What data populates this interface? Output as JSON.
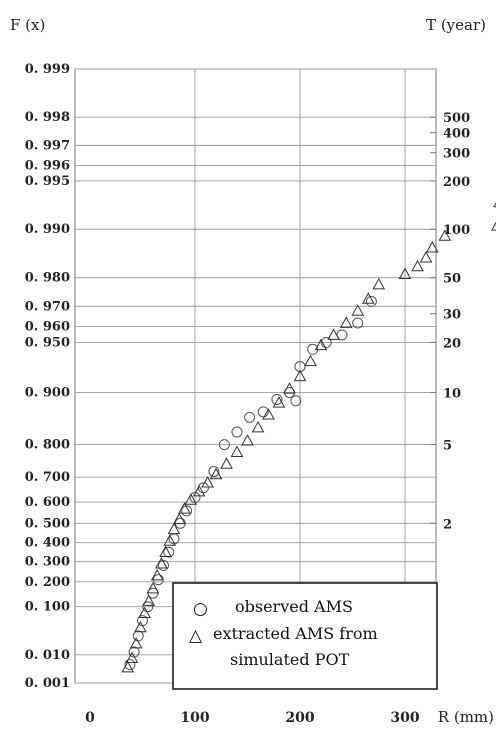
{
  "chart_data": {
    "type": "scatter",
    "title": "",
    "left_axis_title": "F (x)",
    "right_axis_title": "T (year)",
    "xlabel": "R (mm)",
    "xlim": [
      0,
      400
    ],
    "x_ticks": [
      {
        "value": 0,
        "label": "0"
      },
      {
        "value": 100,
        "label": "100"
      },
      {
        "value": 200,
        "label": "200"
      },
      {
        "value": 300,
        "label": "300"
      }
    ],
    "y_scale": "gumbel probability (reduced variate -ln(-ln F))",
    "ylim": [
      0.001,
      0.999
    ],
    "left_ticks": [
      {
        "value": 0.999,
        "label": "0. 999"
      },
      {
        "value": 0.998,
        "label": "0. 998"
      },
      {
        "value": 0.997,
        "label": "0. 997"
      },
      {
        "value": 0.996,
        "label": "0. 996"
      },
      {
        "value": 0.995,
        "label": "0. 995"
      },
      {
        "value": 0.99,
        "label": "0. 990"
      },
      {
        "value": 0.98,
        "label": "0. 980"
      },
      {
        "value": 0.97,
        "label": "0. 970"
      },
      {
        "value": 0.96,
        "label": "0. 960"
      },
      {
        "value": 0.95,
        "label": "0. 950"
      },
      {
        "value": 0.9,
        "label": "0. 900"
      },
      {
        "value": 0.8,
        "label": "0. 800"
      },
      {
        "value": 0.7,
        "label": "0. 700"
      },
      {
        "value": 0.6,
        "label": "0. 600"
      },
      {
        "value": 0.5,
        "label": "0. 500"
      },
      {
        "value": 0.4,
        "label": "0. 400"
      },
      {
        "value": 0.3,
        "label": "0. 300"
      },
      {
        "value": 0.2,
        "label": "0. 200"
      },
      {
        "value": 0.1,
        "label": "0. 100"
      },
      {
        "value": 0.01,
        "label": "0. 010"
      },
      {
        "value": 0.001,
        "label": "0. 001"
      }
    ],
    "right_ticks": [
      {
        "value": 500,
        "label": "500"
      },
      {
        "value": 400,
        "label": "400"
      },
      {
        "value": 300,
        "label": "300"
      },
      {
        "value": 200,
        "label": "200"
      },
      {
        "value": 100,
        "label": "100"
      },
      {
        "value": 50,
        "label": "50"
      },
      {
        "value": 30,
        "label": "30"
      },
      {
        "value": 20,
        "label": "20"
      },
      {
        "value": 10,
        "label": "10"
      },
      {
        "value": 5,
        "label": "5"
      },
      {
        "value": 2,
        "label": "2"
      }
    ],
    "grid": true,
    "legend_position": "bottom-right",
    "series": [
      {
        "name": "observed AMS",
        "marker": "circle",
        "points": [
          [
            38,
            0.005
          ],
          [
            42,
            0.012
          ],
          [
            46,
            0.03
          ],
          [
            50,
            0.06
          ],
          [
            55,
            0.1
          ],
          [
            60,
            0.15
          ],
          [
            65,
            0.21
          ],
          [
            70,
            0.28
          ],
          [
            75,
            0.35
          ],
          [
            80,
            0.42
          ],
          [
            86,
            0.5
          ],
          [
            92,
            0.56
          ],
          [
            100,
            0.62
          ],
          [
            108,
            0.66
          ],
          [
            118,
            0.72
          ],
          [
            128,
            0.8
          ],
          [
            140,
            0.83
          ],
          [
            152,
            0.86
          ],
          [
            165,
            0.87
          ],
          [
            178,
            0.89
          ],
          [
            190,
            0.9
          ],
          [
            196,
            0.888
          ],
          [
            200,
            0.93
          ],
          [
            212,
            0.945
          ],
          [
            225,
            0.95
          ],
          [
            240,
            0.955
          ],
          [
            255,
            0.962
          ],
          [
            268,
            0.972
          ]
        ]
      },
      {
        "name": "extracted AMS from simulated POT",
        "marker": "triangle",
        "points": [
          [
            36,
            0.004
          ],
          [
            40,
            0.008
          ],
          [
            44,
            0.02
          ],
          [
            48,
            0.045
          ],
          [
            52,
            0.08
          ],
          [
            56,
            0.12
          ],
          [
            60,
            0.17
          ],
          [
            64,
            0.23
          ],
          [
            68,
            0.29
          ],
          [
            72,
            0.35
          ],
          [
            76,
            0.41
          ],
          [
            80,
            0.47
          ],
          [
            85,
            0.52
          ],
          [
            90,
            0.57
          ],
          [
            96,
            0.61
          ],
          [
            104,
            0.645
          ],
          [
            112,
            0.68
          ],
          [
            120,
            0.71
          ],
          [
            130,
            0.745
          ],
          [
            140,
            0.78
          ],
          [
            150,
            0.81
          ],
          [
            160,
            0.84
          ],
          [
            170,
            0.865
          ],
          [
            180,
            0.885
          ],
          [
            190,
            0.905
          ],
          [
            200,
            0.92
          ],
          [
            210,
            0.935
          ],
          [
            220,
            0.948
          ],
          [
            232,
            0.955
          ],
          [
            244,
            0.962
          ],
          [
            255,
            0.968
          ],
          [
            265,
            0.973
          ],
          [
            275,
            0.978
          ],
          [
            300,
            0.981
          ],
          [
            312,
            0.983
          ],
          [
            320,
            0.985
          ],
          [
            326,
            0.987
          ],
          [
            338,
            0.989
          ],
          [
            388,
            0.9905
          ],
          [
            390,
            0.9932
          ]
        ]
      }
    ]
  },
  "legend": {
    "observed_label": "observed AMS",
    "extracted_label_line1": "extracted AMS from",
    "extracted_label_line2": "simulated POT",
    "observed_symbol": "○",
    "extracted_symbol": "△"
  }
}
